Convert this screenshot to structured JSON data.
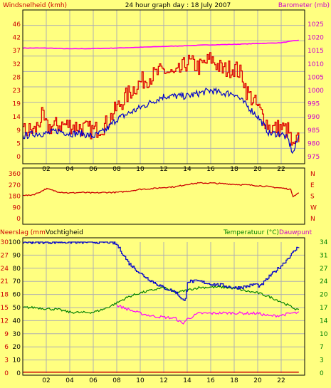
{
  "colors": {
    "background": "#ffff80",
    "wind_avg": "#0000cc",
    "wind_gust": "#dd0000",
    "barometer": "#ff00ff",
    "direction": "#cc0000",
    "humidity": "#0000cc",
    "temperature": "#008000",
    "dewpoint": "#ff00ff",
    "rain": "#cc0000",
    "axis_left": "#cc0000",
    "axis_right": "#cc00cc",
    "axis_temp": "#008000"
  },
  "header": {
    "title": "24 hour graph day : 18 July 2007"
  },
  "chart_data": [
    {
      "type": "line",
      "name": "wind-barometer",
      "title": "24 hour graph day : 18 July 2007",
      "ylabel_left": "Windsnelheid (kmh)",
      "ylabel_right": "Barometer (mb)",
      "x_ticks": [
        "02",
        "04",
        "06",
        "08",
        "10",
        "12",
        "14",
        "16",
        "18",
        "20",
        "22"
      ],
      "xlim": [
        0,
        24
      ],
      "ylim_left": [
        0,
        46
      ],
      "ylim_right": [
        975,
        1025
      ],
      "yticks_left": [
        "0",
        "5",
        "9",
        "14",
        "19",
        "23",
        "28",
        "32",
        "37",
        "42",
        "46"
      ],
      "yticks_right": [
        "975",
        "980",
        "985",
        "990",
        "995",
        "1000",
        "1005",
        "1010",
        "1015",
        "1020",
        "1025"
      ],
      "grid": true,
      "series": [
        {
          "role": "wind_gust",
          "x": [
            0,
            1,
            1.6,
            2,
            3,
            4,
            5,
            6,
            7,
            8,
            9,
            10,
            11,
            12,
            13,
            14,
            15,
            16,
            17,
            18,
            18.7,
            19,
            20,
            21,
            22,
            22.6,
            23,
            23.5
          ],
          "y": [
            9,
            9,
            14,
            10,
            11,
            11,
            10,
            9,
            11,
            17,
            22,
            26,
            28,
            30,
            28,
            33,
            31,
            34,
            30,
            31,
            28,
            23,
            17,
            10,
            10,
            9,
            2,
            7
          ]
        },
        {
          "role": "wind_avg",
          "x": [
            0,
            1,
            2,
            3,
            4,
            5,
            6,
            7,
            8,
            9,
            10,
            11,
            12,
            13,
            14,
            15,
            16,
            17,
            18,
            19,
            20,
            21,
            22,
            22.6,
            23,
            23.5
          ],
          "y": [
            7,
            8,
            8,
            9,
            8,
            8,
            7,
            9,
            13,
            15,
            17,
            19,
            21,
            21,
            21,
            22,
            23,
            22,
            22,
            18,
            14,
            8,
            8,
            6,
            1,
            7
          ]
        },
        {
          "role": "barometer",
          "axis": "right",
          "x": [
            0,
            2,
            4,
            6,
            8,
            10,
            12,
            14,
            16,
            18,
            20,
            22,
            23.5
          ],
          "y": [
            1016,
            1016,
            1015.7,
            1015.8,
            1016,
            1016.3,
            1016.6,
            1016.9,
            1017.2,
            1017.4,
            1017.7,
            1018,
            1019
          ]
        }
      ]
    },
    {
      "type": "line",
      "name": "wind-direction",
      "ylim": [
        0,
        360
      ],
      "yticks": [
        "0",
        "90",
        "180",
        "270",
        "360"
      ],
      "compass_labels": [
        "N",
        "W",
        "S",
        "E",
        "N"
      ],
      "series": [
        {
          "role": "direction",
          "x": [
            0,
            0.5,
            1,
            1.5,
            2,
            3,
            4,
            5,
            6,
            7,
            8,
            9,
            10,
            11,
            12,
            13,
            14,
            15,
            16,
            17,
            18,
            19,
            20,
            21,
            22,
            22.8,
            23,
            23.5
          ],
          "y": [
            190,
            185,
            195,
            215,
            240,
            215,
            205,
            210,
            205,
            210,
            210,
            220,
            235,
            240,
            250,
            255,
            275,
            285,
            285,
            280,
            275,
            270,
            265,
            255,
            245,
            235,
            180,
            205
          ]
        }
      ]
    },
    {
      "type": "line",
      "name": "humidity-temperature",
      "ylabel_rain": "Neerslag (mm",
      "ylabel_humidity": "Vochtigheid",
      "ylabel_right": "Temperatuur (°C)",
      "ylabel_right2": "Dauwpunt",
      "ylim_humidity": [
        0,
        100
      ],
      "ylim_temperature": [
        0,
        34
      ],
      "yticks_humidity": [
        "0",
        "10",
        "20",
        "30",
        "40",
        "50",
        "60",
        "70",
        "80",
        "90",
        "100"
      ],
      "yticks_rain": [
        "0",
        "3",
        "6",
        "9",
        "12",
        "15",
        "18",
        "21",
        "24",
        "27",
        "30"
      ],
      "yticks_temperature": [
        "0",
        "3",
        "7",
        "10",
        "14",
        "17",
        "20",
        "24",
        "27",
        "31",
        "34"
      ],
      "series": [
        {
          "role": "humidity",
          "x": [
            0,
            2,
            4,
            6,
            7.5,
            8,
            9,
            10,
            11,
            12,
            13,
            13.8,
            14,
            15,
            16,
            17,
            18,
            19,
            19.8,
            20.2,
            21,
            22,
            23,
            23.5
          ],
          "y": [
            100,
            100,
            100,
            100,
            100,
            98,
            84,
            76,
            70,
            65,
            62,
            54,
            70,
            70,
            68,
            67,
            65,
            66,
            68,
            66,
            74,
            82,
            92,
            97
          ]
        },
        {
          "role": "temperature",
          "axis": "right",
          "x": [
            0,
            1,
            2,
            3,
            4,
            5,
            6,
            7,
            8,
            9,
            10,
            11,
            12,
            12.7,
            13,
            14,
            15,
            16,
            17,
            18,
            19,
            20,
            21,
            22,
            23,
            23.5
          ],
          "y": [
            17,
            17,
            16.7,
            16.5,
            15.8,
            15.7,
            15.8,
            16.7,
            18.2,
            19.8,
            20.8,
            21.5,
            22.2,
            21.3,
            20.8,
            21.5,
            22.2,
            22.3,
            22.3,
            22,
            21.3,
            20.8,
            19.8,
            18.5,
            17,
            16.2
          ]
        },
        {
          "role": "dewpoint",
          "axis": "right",
          "x": [
            0,
            8,
            9,
            10,
            11,
            12,
            13,
            13.6,
            14,
            15,
            16,
            17,
            18,
            19,
            20,
            21,
            22,
            23,
            23.5
          ],
          "y": [
            null,
            17.6,
            16.5,
            15.5,
            14.8,
            14.5,
            14.2,
            12.8,
            14,
            15.5,
            15.5,
            15.6,
            15.6,
            15.5,
            15.5,
            14.8,
            15,
            15.6,
            15.6
          ]
        },
        {
          "role": "rain",
          "x": [
            0,
            23.5
          ],
          "y": [
            0.2,
            0.2
          ]
        }
      ]
    }
  ]
}
